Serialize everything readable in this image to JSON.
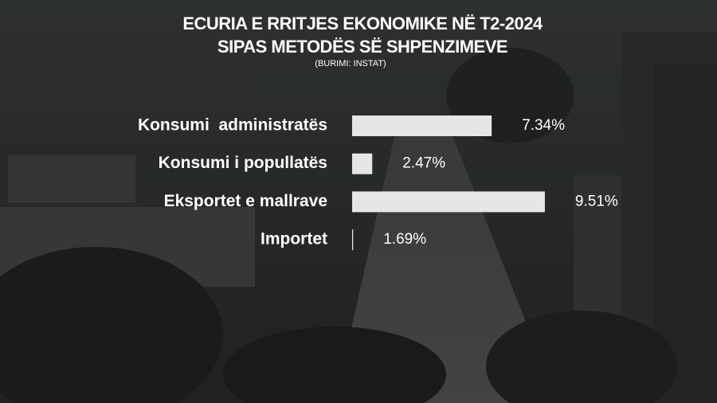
{
  "chart_data": {
    "type": "hbar",
    "title": "ECURIA E RRITJES EKONOMIKE NË T2-2024",
    "subtitle": "SIPAS METODËS SË SHPENZIMEVE",
    "source": "(BURIMI: INSTAT)",
    "categories": [
      "Konsumi  administratës",
      "Konsumi i popullatës",
      "Eksportet e mallrave",
      "Importet"
    ],
    "values": [
      7.34,
      2.47,
      9.51,
      1.69
    ],
    "value_labels": [
      "7.34%",
      "2.47%",
      "9.51%",
      "1.69%"
    ],
    "color": "#e6e6e6",
    "xlim": [
      1.65,
      10
    ]
  }
}
